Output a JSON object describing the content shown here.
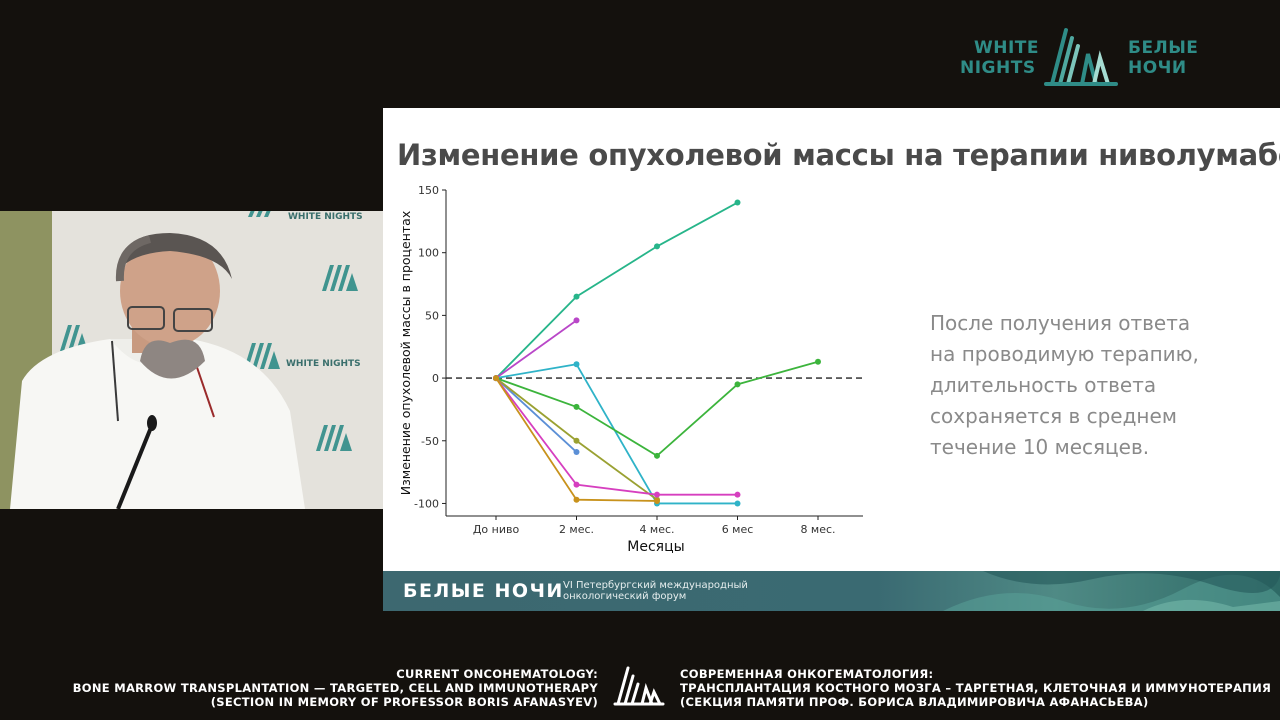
{
  "header_logo": {
    "en_line1": "WHITE",
    "en_line2": "NIGHTS",
    "ru_line1": "БЕЛЫЕ",
    "ru_line2": "НОЧИ",
    "accent_color": "#2f8c87"
  },
  "camera_backdrop": {
    "logo_text": "WHITE NIGHTS"
  },
  "slide": {
    "title": "Изменение опухолевой массы на терапии ниволумабом",
    "body_lines": [
      "После получения ответа",
      "на проводимую терапию,",
      "длительность ответа",
      "сохраняется в среднем",
      "течение 10 месяцев."
    ],
    "banner": {
      "title": "БЕЛЫЕ НОЧИ",
      "subtitle_line1": "VI Петербургский международный",
      "subtitle_line2": "онкологический форум"
    }
  },
  "chart_data": {
    "type": "line",
    "categories": [
      "До ниво",
      "2 мес.",
      "4 мес.",
      "6 мес",
      "8 мес."
    ],
    "xlabel": "Месяцы",
    "ylabel": "Изменение опухолевой массы в процентах",
    "ylim": [
      -110,
      150
    ],
    "yticks": [
      150,
      100,
      50,
      0,
      -50,
      -100
    ],
    "reference_line": 0,
    "grid": false,
    "series": [
      {
        "color": "#27b58a",
        "values": [
          0,
          65,
          105,
          140,
          null
        ]
      },
      {
        "color": "#b947c8",
        "values": [
          0,
          46,
          null,
          null,
          null
        ]
      },
      {
        "color": "#2fb3c8",
        "values": [
          0,
          11,
          -100,
          -100,
          null
        ]
      },
      {
        "color": "#3cb43c",
        "values": [
          0,
          -23,
          -62,
          -5,
          13
        ]
      },
      {
        "color": "#5b8fd6",
        "values": [
          0,
          -59,
          null,
          null,
          null
        ]
      },
      {
        "color": "#9aa132",
        "values": [
          0,
          -50,
          -97,
          null,
          null
        ]
      },
      {
        "color": "#d63fbf",
        "values": [
          0,
          -85,
          -93,
          -93,
          null
        ]
      },
      {
        "color": "#c8921c",
        "values": [
          0,
          -97,
          -98,
          null,
          null
        ]
      }
    ]
  },
  "caption": {
    "en_line1": "CURRENT ONCOHEMATOLOGY:",
    "en_line2": "BONE MARROW TRANSPLANTATION — TARGETED, CELL AND IMMUNOTHERAPY",
    "en_line3": "(SECTION IN MEMORY OF PROFESSOR BORIS AFANASYEV)",
    "ru_line1": "СОВРЕМЕННАЯ ОНКОГЕМАТОЛОГИЯ:",
    "ru_line2": "ТРАНСПЛАНТАЦИЯ КОСТНОГО МОЗГА – ТАРГЕТНАЯ, КЛЕТОЧНАЯ И ИММУНОТЕРАПИЯ",
    "ru_line3": "(СЕКЦИЯ ПАМЯТИ ПРОФ. БОРИСА ВЛАДИМИРОВИЧА АФАНАСЬЕВА)"
  }
}
